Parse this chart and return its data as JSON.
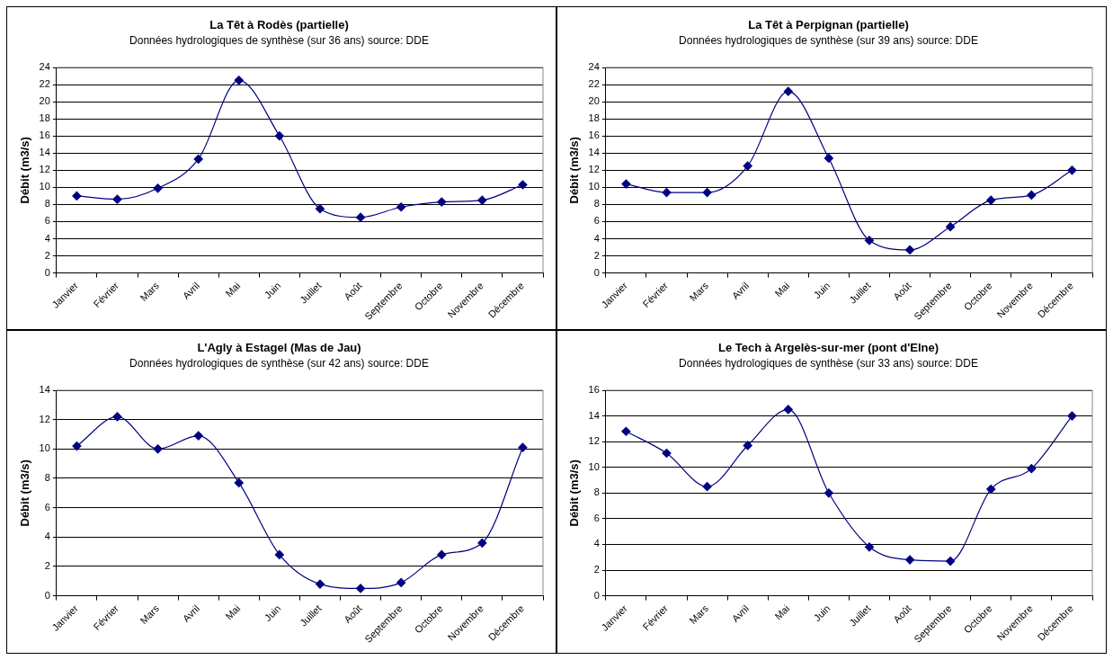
{
  "chart_data": [
    {
      "type": "line",
      "title": "La Têt à Rodès (partielle)",
      "subtitle": "Données hydrologiques de synthèse (sur 36 ans) source: DDE",
      "ylabel": "Débit (m3/s)",
      "categories": [
        "Janvier",
        "Février",
        "Mars",
        "Avril",
        "Mai",
        "Juin",
        "Juillet",
        "Août",
        "Septembre",
        "Octobre",
        "Novembre",
        "Décembre"
      ],
      "series": [
        {
          "color": "#000080",
          "values": [
            9.0,
            8.6,
            9.9,
            13.3,
            22.5,
            16.0,
            7.5,
            6.5,
            7.7,
            8.3,
            8.5,
            10.3
          ]
        }
      ],
      "ylim": [
        0,
        24
      ],
      "yticks": [
        0,
        2,
        4,
        6,
        8,
        10,
        12,
        14,
        16,
        18,
        20,
        22,
        24
      ],
      "grid": "y",
      "legend": false,
      "marker": "diamond",
      "line_style": "solid"
    },
    {
      "type": "line",
      "title": "La Têt à Perpignan (partielle)",
      "subtitle": "Données hydrologiques de synthèse (sur 39 ans) source: DDE",
      "ylabel": "Débit (m3/s)",
      "categories": [
        "Janvier",
        "Février",
        "Mars",
        "Avril",
        "Mai",
        "Juin",
        "Juillet",
        "Août",
        "Septembre",
        "Octobre",
        "Novembre",
        "Décembre"
      ],
      "series": [
        {
          "color": "#000080",
          "values": [
            10.4,
            9.4,
            9.4,
            12.5,
            21.2,
            13.4,
            3.8,
            2.7,
            5.4,
            8.5,
            9.1,
            12.0
          ]
        }
      ],
      "ylim": [
        0,
        24
      ],
      "yticks": [
        0,
        2,
        4,
        6,
        8,
        10,
        12,
        14,
        16,
        18,
        20,
        22,
        24
      ],
      "grid": "y",
      "legend": false,
      "marker": "diamond",
      "line_style": "solid"
    },
    {
      "type": "line",
      "title": "L'Agly à Estagel (Mas de Jau)",
      "subtitle": "Données hydrologiques de synthèse (sur 42 ans) source: DDE",
      "ylabel": "Débit (m3/s)",
      "categories": [
        "Janvier",
        "Février",
        "Mars",
        "Avril",
        "Mai",
        "Juin",
        "Juillet",
        "Août",
        "Septembre",
        "Octobre",
        "Novembre",
        "Décembre"
      ],
      "series": [
        {
          "color": "#000080",
          "values": [
            10.2,
            12.2,
            10.0,
            10.9,
            7.7,
            2.8,
            0.8,
            0.5,
            0.9,
            2.8,
            3.6,
            10.1
          ]
        }
      ],
      "ylim": [
        0,
        14
      ],
      "yticks": [
        0,
        2,
        4,
        6,
        8,
        10,
        12,
        14
      ],
      "grid": "y",
      "legend": false,
      "marker": "diamond",
      "line_style": "solid"
    },
    {
      "type": "line",
      "title": "Le Tech à Argelès-sur-mer (pont d'Elne)",
      "subtitle": "Données hydrologiques de synthèse (sur 33 ans) source: DDE",
      "ylabel": "Débit (m3/s)",
      "categories": [
        "Janvier",
        "Février",
        "Mars",
        "Avril",
        "Mai",
        "Juin",
        "Juillet",
        "Août",
        "Septembre",
        "Octobre",
        "Novembre",
        "Décembre"
      ],
      "series": [
        {
          "color": "#000080",
          "values": [
            12.8,
            11.1,
            8.5,
            11.7,
            14.5,
            8.0,
            3.8,
            2.8,
            2.7,
            8.3,
            9.9,
            14.0
          ]
        }
      ],
      "ylim": [
        0,
        16
      ],
      "yticks": [
        0,
        2,
        4,
        6,
        8,
        10,
        12,
        14,
        16
      ],
      "grid": "y",
      "legend": false,
      "marker": "diamond",
      "line_style": "solid"
    }
  ]
}
